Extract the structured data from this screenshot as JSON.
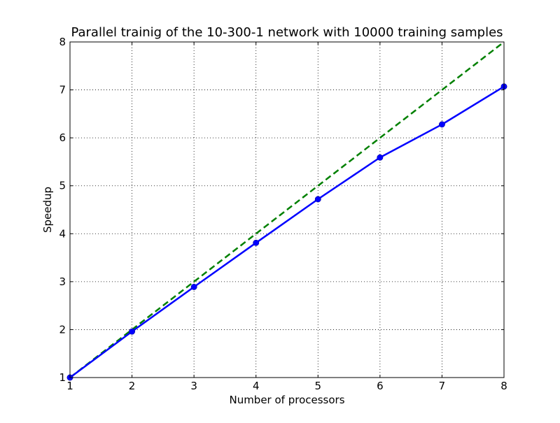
{
  "chart_data": {
    "type": "line",
    "title": "Parallel trainig of the 10-300-1 network with 10000 training samples",
    "xlabel": "Number of processors",
    "ylabel": "Speedup",
    "xlim": [
      1,
      8
    ],
    "ylim": [
      1,
      8
    ],
    "xticks": [
      1,
      2,
      3,
      4,
      5,
      6,
      7,
      8
    ],
    "yticks": [
      1,
      2,
      3,
      4,
      5,
      6,
      7,
      8
    ],
    "grid": true,
    "series": [
      {
        "x": [
          1,
          2,
          3,
          4,
          5,
          6,
          7,
          8
        ],
        "values": [
          1.0,
          1.96,
          2.89,
          3.81,
          4.72,
          5.59,
          6.28,
          7.07
        ],
        "color": "#0000ff",
        "style": "solid",
        "markers": true
      },
      {
        "x": [
          1,
          8
        ],
        "values": [
          1,
          8
        ],
        "color": "#008000",
        "style": "dashed",
        "markers": false
      }
    ]
  }
}
